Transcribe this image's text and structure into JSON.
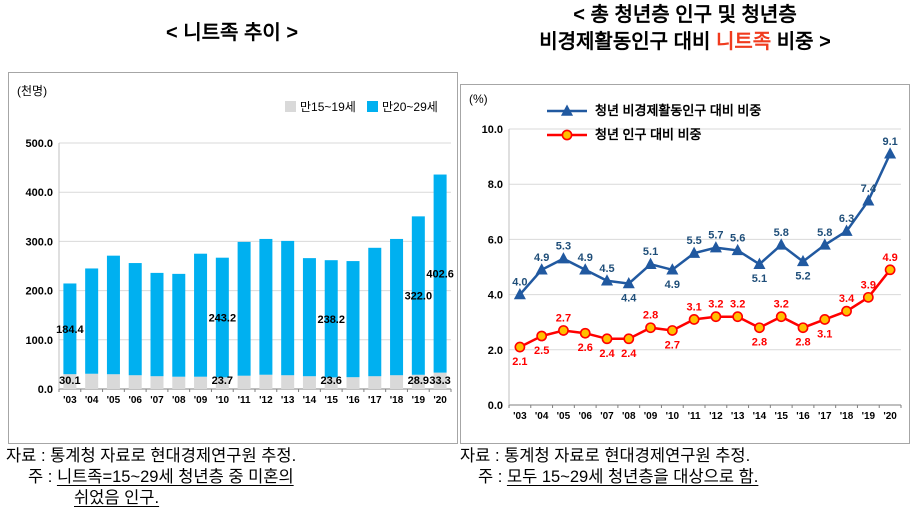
{
  "left_panel": {
    "title": "< 니트족 추이 >",
    "source": "자료 : 통계청 자료로 현대경제연구원 추정.",
    "note_prefix": "주 : ",
    "note_underline1": "니트족=15~29세 청년층 중 미혼의",
    "note_underline2": "쉬었음 인구."
  },
  "right_panel": {
    "title_line1": "< 총 청년층 인구 및 청년층",
    "title_line2_pre": "비경제활동인구 대비 ",
    "title_line2_highlight": "니트족",
    "title_line2_post": " 비중 >",
    "source": "자료 : 통계청 자료로 현대경제연구원 추정.",
    "note_prefix": "주 : ",
    "note_underline": "모두 15~29세 청년층을 대상으로 함."
  },
  "colors": {
    "bar_gray": "#D9D9D9",
    "bar_blue": "#00B0F0",
    "line_blue": "#2159A0",
    "line_blue_label": "#1F4E79",
    "line_red": "#FF0000",
    "marker_orange": "#FFC000",
    "title_highlight_red": "#F03B1E",
    "grid": "#D9D9D9",
    "axis": "#7F7F7F"
  },
  "chart_data": [
    {
      "id": "neet-trend",
      "type": "bar",
      "stacked": true,
      "title": "< 니트족 추이 >",
      "ylabel": "(천명)",
      "xlabel": "",
      "ylim": [
        0,
        500
      ],
      "ytick_step": 100,
      "grid": true,
      "legend_position": "top-right",
      "categories": [
        "'03",
        "'04",
        "'05",
        "'06",
        "'07",
        "'08",
        "'09",
        "'10",
        "'11",
        "'12",
        "'13",
        "'14",
        "'15",
        "'16",
        "'17",
        "'18",
        "'19",
        "'20"
      ],
      "series": [
        {
          "key": "age15-19",
          "name": "만15~19세",
          "color": "#D9D9D9",
          "values": [
            30.1,
            31,
            30,
            28,
            26,
            25,
            25,
            23.7,
            27,
            29,
            28,
            26,
            23.6,
            24,
            26,
            28,
            28.9,
            33.3
          ]
        },
        {
          "key": "age20-29",
          "name": "만20~29세",
          "color": "#00B0F0",
          "values": [
            184.4,
            214,
            241,
            228,
            210,
            209,
            250,
            243.2,
            272,
            276,
            273,
            240,
            238.2,
            236,
            261,
            277,
            322.0,
            402.6
          ]
        }
      ],
      "labeled_indices": [
        0,
        7,
        12,
        16,
        17
      ],
      "value_precision": 1
    },
    {
      "id": "neet-share",
      "type": "line",
      "title": "< 총 청년층 인구 및 청년층 비경제활동인구 대비 니트족 비중 >",
      "ylabel": "(%)",
      "xlabel": "",
      "ylim": [
        0,
        10
      ],
      "ytick_step": 2,
      "grid": true,
      "legend_position": "top-center",
      "categories": [
        "'03",
        "'04",
        "'05",
        "'06",
        "'07",
        "'08",
        "'09",
        "'10",
        "'11",
        "'12",
        "'13",
        "'14",
        "'15",
        "'16",
        "'17",
        "'18",
        "'19",
        "'20"
      ],
      "series": [
        {
          "key": "share-of-inactive",
          "name": "청년 비경제활동인구 대비 비중",
          "color": "#2159A0",
          "label_color": "#1F4E79",
          "marker": "triangle",
          "marker_fill": "#2159A0",
          "values": [
            4.0,
            4.9,
            5.3,
            4.9,
            4.5,
            4.4,
            5.1,
            4.9,
            5.5,
            5.7,
            5.6,
            5.1,
            5.8,
            5.2,
            5.8,
            6.3,
            7.4,
            9.1
          ],
          "label_positions": [
            "above",
            "above",
            "above",
            "above",
            "above",
            "below",
            "above",
            "below",
            "above",
            "above",
            "above",
            "below",
            "above",
            "below",
            "above",
            "above",
            "above",
            "above"
          ]
        },
        {
          "key": "share-of-population",
          "name": "청년 인구 대비 비중",
          "color": "#FF0000",
          "label_color": "#FF0000",
          "marker": "circle",
          "marker_fill": "#FFC000",
          "values": [
            2.1,
            2.5,
            2.7,
            2.6,
            2.4,
            2.4,
            2.8,
            2.7,
            3.1,
            3.2,
            3.2,
            2.8,
            3.2,
            2.8,
            3.1,
            3.4,
            3.9,
            4.9
          ],
          "label_positions": [
            "below",
            "below",
            "above",
            "below",
            "below",
            "below",
            "above",
            "below",
            "above",
            "above",
            "above",
            "below",
            "above",
            "below",
            "below",
            "above",
            "above",
            "above"
          ]
        }
      ],
      "value_precision": 1
    }
  ]
}
